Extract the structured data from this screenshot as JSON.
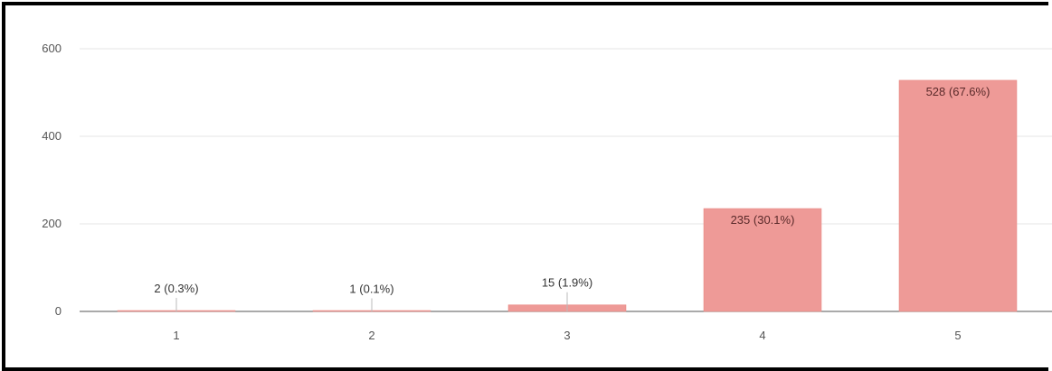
{
  "chart_data": {
    "type": "bar",
    "categories": [
      "1",
      "2",
      "3",
      "4",
      "5"
    ],
    "values": [
      2,
      1,
      15,
      235,
      528
    ],
    "data_labels": [
      "2 (0.3%)",
      "1 (0.1%)",
      "15 (1.9%)",
      "235 (30.1%)",
      "528 (67.6%)"
    ],
    "title": "",
    "xlabel": "",
    "ylabel": "",
    "ylim": [
      0,
      600
    ],
    "y_ticks": [
      0,
      200,
      400,
      600
    ],
    "grid": true,
    "legend": "none",
    "colors": {
      "bar": "#ee9a97",
      "bar_stroke": "#e8837f",
      "grid": "#e6e6e6",
      "axis": "#555555"
    }
  }
}
